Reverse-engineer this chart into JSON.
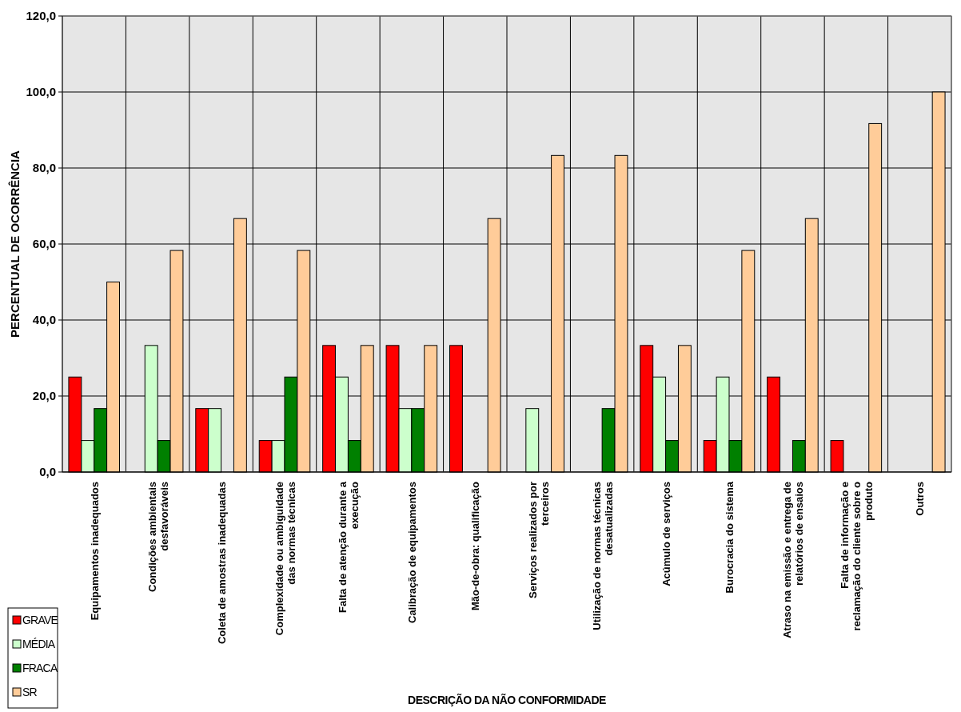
{
  "chart_data": {
    "type": "bar",
    "xlabel": "DESCRIÇÃO DA NÃO CONFORMIDADE",
    "ylabel": "PERCENTUAL DE OCORRÊNCIA",
    "categories": [
      "Equipamentos inadequados",
      "Condições ambientais desfavoráveis",
      "Coleta de amostras inadequadas",
      "Complexidade ou ambiguidade das normas técnicas",
      "Falta de atenção durante a execução",
      "Calibração de equipamentos",
      "Mão-de-obra: qualificação",
      "Serviços realizados por terceiros",
      "Utilização de normas técnicas desatualizadas",
      "Acúmulo de serviços",
      "Burocracia do sistema",
      "Atraso na emissão e entrega de relatórios de ensaios",
      "Falta de informação e reclamação do cliente sobre o produto",
      "Outros"
    ],
    "series": [
      {
        "name": "GRAVE",
        "color": "#ff0000",
        "values": [
          25,
          0,
          16.7,
          8.3,
          33.3,
          33.3,
          33.3,
          0,
          0,
          33.3,
          8.3,
          25,
          8.3,
          0
        ]
      },
      {
        "name": "MÉDIA",
        "color": "#ccffcc",
        "values": [
          8.3,
          33.3,
          16.7,
          8.3,
          25,
          16.7,
          0,
          16.7,
          0,
          25,
          25,
          0,
          0,
          0
        ]
      },
      {
        "name": "FRACA",
        "color": "#008000",
        "values": [
          16.7,
          8.3,
          0,
          25,
          8.3,
          16.7,
          0,
          0,
          16.7,
          8.3,
          8.3,
          8.3,
          0,
          0
        ]
      },
      {
        "name": "SR",
        "color": "#ffcc99",
        "values": [
          50,
          58.3,
          66.7,
          58.3,
          33.3,
          33.3,
          66.7,
          83.3,
          83.3,
          33.3,
          58.3,
          66.7,
          91.7,
          100
        ]
      }
    ],
    "ylim": [
      0,
      120
    ],
    "yticks": [
      {
        "value": 0,
        "label": "0,0"
      },
      {
        "value": 20,
        "label": "20,0"
      },
      {
        "value": 40,
        "label": "40,0"
      },
      {
        "value": 60,
        "label": "60,0"
      },
      {
        "value": 80,
        "label": "80,0"
      },
      {
        "value": 100,
        "label": "100,0"
      },
      {
        "value": 120,
        "label": "120,0"
      }
    ],
    "grid": true,
    "legend": "bottom left"
  }
}
